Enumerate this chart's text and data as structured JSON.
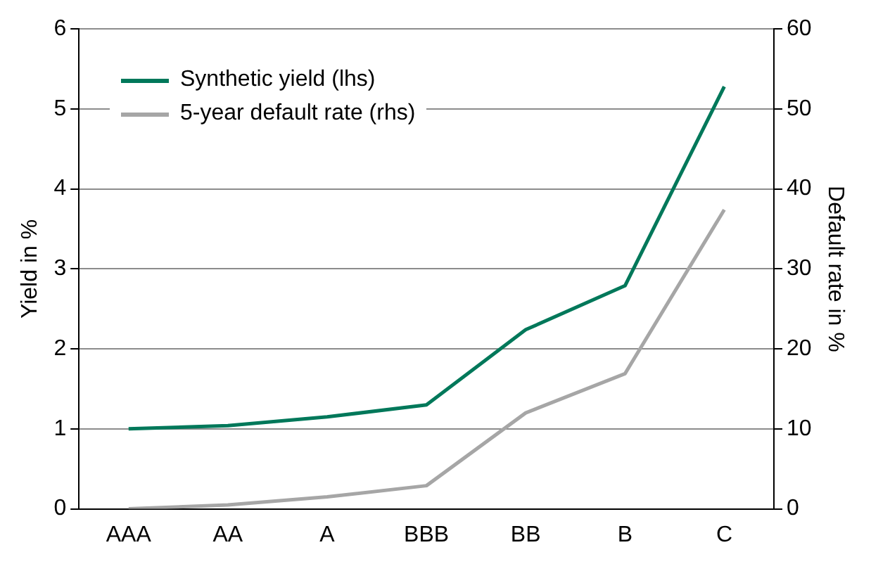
{
  "chart_data": {
    "type": "line",
    "xlabel": null,
    "ylabel": "Yield in %",
    "y2label": "Default rate in %",
    "categories": [
      "AAA",
      "AA",
      "A",
      "BBB",
      "BB",
      "B",
      "C"
    ],
    "series": [
      {
        "name": "Synthetic yield (lhs)",
        "color": "#00785a",
        "values": [
          1.0,
          1.04,
          1.15,
          1.3,
          2.24,
          2.79,
          5.28
        ]
      },
      {
        "name": "5-year default rate (rhs)",
        "color": "#a6a6a6",
        "axis": "y2",
        "values": [
          0,
          0.5,
          1.5,
          2.9,
          12,
          16.9,
          37.4
        ]
      }
    ],
    "ylim": [
      0,
      6
    ],
    "yticks": [
      0,
      1,
      2,
      3,
      4,
      5,
      6
    ],
    "y2lim": [
      0,
      60
    ],
    "y2ticks": [
      0,
      10,
      20,
      30,
      40,
      50,
      60
    ],
    "grid": "y",
    "legend": "top left",
    "marker": "none",
    "line_style": "solid"
  }
}
